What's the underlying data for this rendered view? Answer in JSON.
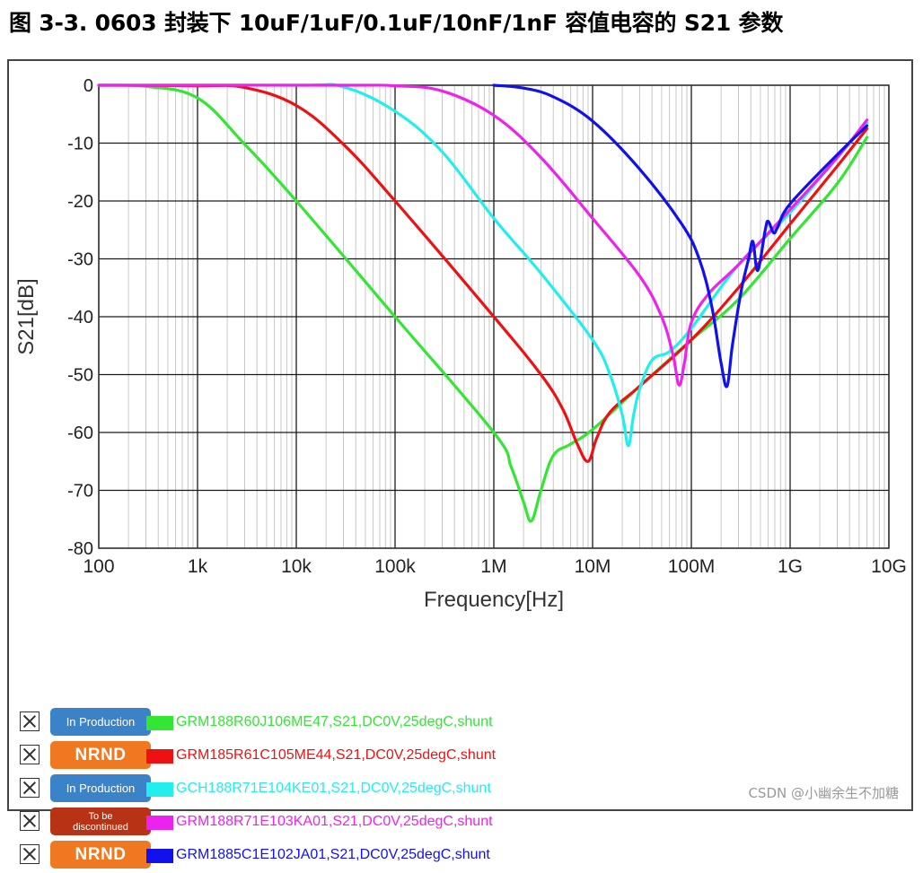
{
  "caption": "图 3-3. 0603 封装下 10uF/1uF/0.1uF/10nF/1nF 容值电容的 S21 参数",
  "watermark": "CSDN @小幽余生不加糖",
  "chart_data": {
    "type": "line",
    "xlabel": "Frequency[Hz]",
    "ylabel": "S21[dB]",
    "xscale": "log",
    "xlim": [
      100,
      10000000000
    ],
    "ylim": [
      -80,
      0
    ],
    "grid": true,
    "x_ticks": [
      {
        "value": 100,
        "label": "100"
      },
      {
        "value": 1000,
        "label": "1k"
      },
      {
        "value": 10000,
        "label": "10k"
      },
      {
        "value": 100000,
        "label": "100k"
      },
      {
        "value": 1000000,
        "label": "1M"
      },
      {
        "value": 10000000,
        "label": "10M"
      },
      {
        "value": 100000000,
        "label": "100M"
      },
      {
        "value": 1000000000,
        "label": "1G"
      },
      {
        "value": 10000000000,
        "label": "10G"
      }
    ],
    "y_ticks": [
      0,
      -10,
      -20,
      -30,
      -40,
      -50,
      -60,
      -70,
      -80
    ],
    "legend_position": "bottom",
    "series": [
      {
        "name": "GRM188R60J106ME47,S21,DC0V,25degC,shunt",
        "status": "In Production",
        "color": "#33e633",
        "x": [
          100,
          300,
          1000,
          3000,
          10000,
          100000,
          1000000,
          1500000,
          2000000,
          2400000,
          3000000,
          4000000,
          6000000,
          10000000,
          30000000,
          100000000,
          300000000,
          1000000000,
          3000000000,
          6000000000
        ],
        "y": [
          0,
          -0.2,
          -2.2,
          -10.2,
          -20,
          -40,
          -60,
          -66,
          -72,
          -75.3,
          -70,
          -64,
          -62,
          -59.5,
          -52,
          -44,
          -37,
          -26.5,
          -17,
          -9
        ]
      },
      {
        "name": "GRM185R61C105ME44,S21,DC0V,25degC,shunt",
        "status": "NRND",
        "color": "#ee1111",
        "x": [
          100,
          1000,
          3000,
          10000,
          30000,
          100000,
          1000000,
          3000000,
          5000000,
          7000000,
          9000000,
          11000000,
          15000000,
          30000000,
          100000000,
          300000000,
          1000000000,
          3000000000,
          6000000000
        ],
        "y": [
          0,
          -0.1,
          -0.4,
          -3.5,
          -10.2,
          -20,
          -40,
          -50,
          -56,
          -62,
          -65,
          -61,
          -56.5,
          -52,
          -44,
          -35,
          -24,
          -14,
          -7.5
        ]
      },
      {
        "name": "GCH188R71E104KE01,S21,DC0V,25degC,shunt",
        "status": "In Production",
        "color": "#22eeee",
        "x": [
          100,
          10000,
          30000,
          100000,
          300000,
          1000000,
          3000000,
          10000000,
          15000000,
          20000000,
          23000000,
          26000000,
          30000000,
          40000000,
          60000000,
          100000000,
          300000000,
          1000000000,
          3000000000,
          6000000000
        ],
        "y": [
          0,
          0,
          -0.3,
          -4.5,
          -11.5,
          -23,
          -32.5,
          -44,
          -50,
          -57,
          -62.3,
          -57,
          -52.5,
          -47.5,
          -46,
          -42,
          -31,
          -22,
          -12.5,
          -6.5
        ]
      },
      {
        "name": "GRM188R71E103KA01,S21,DC0V,25degC,shunt",
        "status": "To be discontinued",
        "color": "#ee22ee",
        "x": [
          100,
          30000,
          100000,
          300000,
          1000000,
          3000000,
          10000000,
          30000000,
          50000000,
          65000000,
          75000000,
          85000000,
          100000000,
          150000000,
          300000000,
          1000000000,
          3000000000,
          6000000000
        ],
        "y": [
          0,
          0,
          -0.1,
          -1,
          -5.2,
          -12.5,
          -23,
          -33,
          -40,
          -46.5,
          -51.8,
          -48,
          -41,
          -36,
          -31,
          -21.5,
          -12.5,
          -6
        ]
      },
      {
        "name": "GRM1885C1E102JA01,S21,DC0V,25degC,shunt",
        "status": "NRND",
        "color": "#1111ee",
        "x": [
          1000000,
          2000000,
          4000000,
          10000000,
          30000000,
          80000000,
          120000000,
          160000000,
          200000000,
          230000000,
          260000000,
          320000000,
          380000000,
          420000000,
          470000000,
          560000000,
          600000000,
          680000000,
          750000000,
          1000000000,
          3000000000,
          6000000000
        ],
        "y": [
          0,
          -0.5,
          -2,
          -6.2,
          -14.5,
          -24,
          -30,
          -38,
          -48,
          -52,
          -45,
          -35.5,
          -30,
          -27,
          -32,
          -25,
          -23.5,
          -25.5,
          -24.5,
          -20.5,
          -12,
          -7
        ]
      }
    ]
  },
  "legend": [
    {
      "checkbox": "checked-x",
      "badge": "In Production",
      "badge_color": "#3a83c8",
      "badge_style": "small",
      "color": "#33e633",
      "text": "GRM188R60J106ME47,S21,DC0V,25degC,shunt"
    },
    {
      "checkbox": "checked-x",
      "badge": "NRND",
      "badge_color": "#f07820",
      "badge_style": "big",
      "color": "#ee1111",
      "text": "GRM185R61C105ME44,S21,DC0V,25degC,shunt"
    },
    {
      "checkbox": "checked-x",
      "badge": "In Production",
      "badge_color": "#3a83c8",
      "badge_style": "small",
      "color": "#22eeee",
      "text": "GCH188R71E104KE01,S21,DC0V,25degC,shunt"
    },
    {
      "checkbox": "checked-x",
      "badge": "To be\ndiscontinued",
      "badge_color": "#b83316",
      "badge_style": "tiny",
      "color": "#ee22ee",
      "text": "GRM188R71E103KA01,S21,DC0V,25degC,shunt"
    },
    {
      "checkbox": "checked-x",
      "badge": "NRND",
      "badge_color": "#f07820",
      "badge_style": "big",
      "color": "#1111ee",
      "text": "GRM1885C1E102JA01,S21,DC0V,25degC,shunt"
    }
  ]
}
